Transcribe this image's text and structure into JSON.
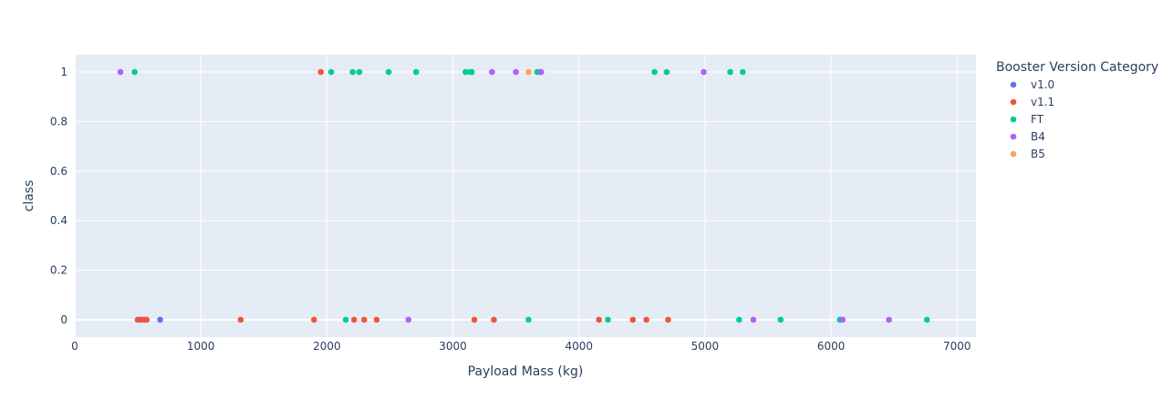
{
  "colors": {
    "plot_bg": "#e5ecf6",
    "grid": "#ffffff",
    "text": "#2a3f5f",
    "v1.0": "#636efa",
    "v1.1": "#ef553b",
    "FT": "#00cc96",
    "B4": "#ab63fa",
    "B5": "#ffa15a"
  },
  "chart_data": {
    "type": "scatter",
    "xlabel": "Payload Mass (kg)",
    "ylabel": "class",
    "xlim": [
      0,
      7150
    ],
    "ylim": [
      -0.07,
      1.07
    ],
    "xticks": [
      0,
      1000,
      2000,
      3000,
      4000,
      5000,
      6000,
      7000
    ],
    "yticks": [
      0,
      0.2,
      0.4,
      0.6,
      0.8,
      1
    ],
    "ytick_labels": [
      "0",
      "0.2",
      "0.4",
      "0.6",
      "0.8",
      "1"
    ],
    "grid": true,
    "legend": {
      "title": "Booster Version Category",
      "placement": "right"
    },
    "series": [
      {
        "name": "v1.0",
        "points": [
          [
            500,
            0
          ],
          [
            525,
            0
          ],
          [
            677,
            0
          ]
        ]
      },
      {
        "name": "v1.1",
        "points": [
          [
            1952,
            1
          ],
          [
            500,
            0
          ],
          [
            525,
            0
          ],
          [
            553,
            0
          ],
          [
            570,
            0
          ],
          [
            1316,
            0
          ],
          [
            1898,
            0
          ],
          [
            2216,
            0
          ],
          [
            2296,
            0
          ],
          [
            2395,
            0
          ],
          [
            3170,
            0
          ],
          [
            3325,
            0
          ],
          [
            4159,
            0
          ],
          [
            4428,
            0
          ],
          [
            4535,
            0
          ],
          [
            4707,
            0
          ]
        ]
      },
      {
        "name": "FT",
        "points": [
          [
            475,
            1
          ],
          [
            2034,
            1
          ],
          [
            2205,
            1
          ],
          [
            2257,
            1
          ],
          [
            2490,
            1
          ],
          [
            2708,
            1
          ],
          [
            3100,
            1
          ],
          [
            3136,
            1
          ],
          [
            3150,
            1
          ],
          [
            3669,
            1
          ],
          [
            3696,
            1
          ],
          [
            4600,
            1
          ],
          [
            4696,
            1
          ],
          [
            5200,
            1
          ],
          [
            5300,
            1
          ],
          [
            2150,
            0
          ],
          [
            3600,
            0
          ],
          [
            4230,
            0
          ],
          [
            5271,
            0
          ],
          [
            5600,
            0
          ],
          [
            6070,
            0
          ],
          [
            6761,
            0
          ]
        ]
      },
      {
        "name": "B4",
        "points": [
          [
            362,
            1
          ],
          [
            3310,
            1
          ],
          [
            3500,
            1
          ],
          [
            3700,
            1
          ],
          [
            4990,
            1
          ],
          [
            2647,
            0
          ],
          [
            5384,
            0
          ],
          [
            6092,
            0
          ],
          [
            6460,
            0
          ]
        ]
      },
      {
        "name": "B5",
        "points": [
          [
            3600,
            1
          ]
        ]
      }
    ]
  }
}
